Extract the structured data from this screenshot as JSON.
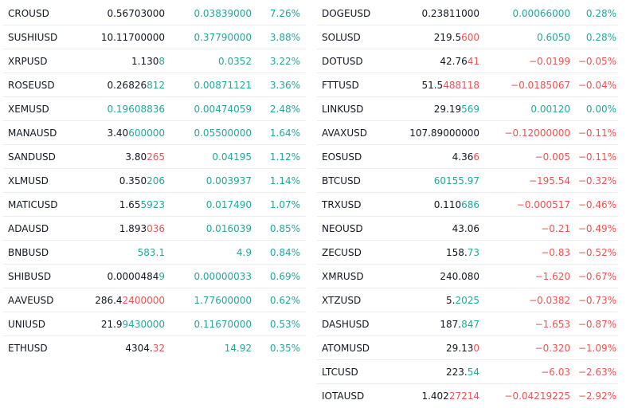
{
  "colors": {
    "up": "#26a69a",
    "down": "#ef5350",
    "text": "#131722",
    "divider": "#e9ecf1"
  },
  "left": [
    {
      "sym": "CROUSD",
      "last": "0.56703000",
      "hl": "",
      "dir": "up",
      "chg": "0.03839000",
      "pct": "7.26%"
    },
    {
      "sym": "SUSHIUSD",
      "last": "10.11700000",
      "hl": "",
      "dir": "up",
      "chg": "0.37790000",
      "pct": "3.88%"
    },
    {
      "sym": "XRPUSD",
      "last": "1.130",
      "hl": "8",
      "dir": "up",
      "chg": "0.0352",
      "pct": "3.22%"
    },
    {
      "sym": "ROSEUSD",
      "last": "0.26826",
      "hl": "812",
      "dir": "up",
      "chg": "0.00871121",
      "pct": "3.36%"
    },
    {
      "sym": "XEMUSD",
      "last": "",
      "hl": "0.19608836",
      "dir": "up",
      "chg": "0.00474059",
      "pct": "2.48%"
    },
    {
      "sym": "MANAUSD",
      "last": "3.40",
      "hl": "600000",
      "dir": "up",
      "chg": "0.05500000",
      "pct": "1.64%"
    },
    {
      "sym": "SANDUSD",
      "last": "3.80",
      "hl": "265",
      "dir": "down",
      "chg": "0.04195",
      "pct": "1.12%"
    },
    {
      "sym": "XLMUSD",
      "last": "0.350",
      "hl": "206",
      "dir": "up",
      "chg": "0.003937",
      "pct": "1.14%"
    },
    {
      "sym": "MATICUSD",
      "last": "1.65",
      "hl": "5923",
      "dir": "up",
      "chg": "0.017490",
      "pct": "1.07%"
    },
    {
      "sym": "ADAUSD",
      "last": "1.893",
      "hl": "036",
      "dir": "down",
      "chg": "0.016039",
      "pct": "0.85%"
    },
    {
      "sym": "BNBUSD",
      "last": "",
      "hl": "583.1",
      "dir": "up",
      "chg": "4.9",
      "pct": "0.84%"
    },
    {
      "sym": "SHIBUSD",
      "last": "0.0000484",
      "hl": "9",
      "dir": "up",
      "chg": "0.00000033",
      "pct": "0.69%"
    },
    {
      "sym": "AAVEUSD",
      "last": "286.4",
      "hl": "2400000",
      "dir": "down",
      "chg": "1.77600000",
      "pct": "0.62%"
    },
    {
      "sym": "UNIUSD",
      "last": "21.9",
      "hl": "9430000",
      "dir": "up",
      "chg": "0.11670000",
      "pct": "0.53%"
    },
    {
      "sym": "ETHUSD",
      "last": "4304.",
      "hl": "32",
      "dir": "down",
      "chg": "14.92",
      "pct": "0.35%"
    }
  ],
  "right": [
    {
      "sym": "DOGEUSD",
      "last": "0.23811000",
      "hl": "",
      "dir": "up",
      "chg": "0.00066000",
      "pct": "0.28%"
    },
    {
      "sym": "SOLUSD",
      "last": "219.5",
      "hl": "600",
      "dir": "down",
      "chg": "0.6050",
      "pct": "0.28%"
    },
    {
      "sym": "DOTUSD",
      "last": "42.76",
      "hl": "41",
      "dir": "down",
      "chg": "−0.0199",
      "pct": "−0.05%"
    },
    {
      "sym": "FTTUSD",
      "last": "51.5",
      "hl": "488118",
      "dir": "down",
      "chg": "−0.0185067",
      "pct": "−0.04%"
    },
    {
      "sym": "LINKUSD",
      "last": "29.19",
      "hl": "569",
      "dir": "up",
      "chg": "0.00120",
      "pct": "0.00%"
    },
    {
      "sym": "AVAXUSD",
      "last": "107.89000000",
      "hl": "",
      "dir": "down",
      "chg": "−0.12000000",
      "pct": "−0.11%"
    },
    {
      "sym": "EOSUSD",
      "last": "4.36",
      "hl": "6",
      "dir": "down",
      "chg": "−0.005",
      "pct": "−0.11%"
    },
    {
      "sym": "BTCUSD",
      "last": "",
      "hl": "60155.97",
      "dir": "up",
      "chg": "−195.54",
      "pct": "−0.32%"
    },
    {
      "sym": "TRXUSD",
      "last": "0.110",
      "hl": "686",
      "dir": "up",
      "chg": "−0.000517",
      "pct": "−0.46%"
    },
    {
      "sym": "NEOUSD",
      "last": "43.06",
      "hl": "",
      "dir": "up",
      "chg": "−0.21",
      "pct": "−0.49%"
    },
    {
      "sym": "ZECUSD",
      "last": "158.",
      "hl": "73",
      "dir": "up",
      "chg": "−0.83",
      "pct": "−0.52%"
    },
    {
      "sym": "XMRUSD",
      "last": "240.080",
      "hl": "",
      "dir": "up",
      "chg": "−1.620",
      "pct": "−0.67%"
    },
    {
      "sym": "XTZUSD",
      "last": "5.",
      "hl": "2025",
      "dir": "up",
      "chg": "−0.0382",
      "pct": "−0.73%"
    },
    {
      "sym": "DASHUSD",
      "last": "187.",
      "hl": "847",
      "dir": "up",
      "chg": "−1.653",
      "pct": "−0.87%"
    },
    {
      "sym": "ATOMUSD",
      "last": "29.13",
      "hl": "0",
      "dir": "down",
      "chg": "−0.320",
      "pct": "−1.09%"
    },
    {
      "sym": "LTCUSD",
      "last": "223.",
      "hl": "54",
      "dir": "up",
      "chg": "−6.03",
      "pct": "−2.63%"
    },
    {
      "sym": "IOTAUSD",
      "last": "1.402",
      "hl": "27214",
      "dir": "down",
      "chg": "−0.04219225",
      "pct": "−2.92%"
    }
  ]
}
